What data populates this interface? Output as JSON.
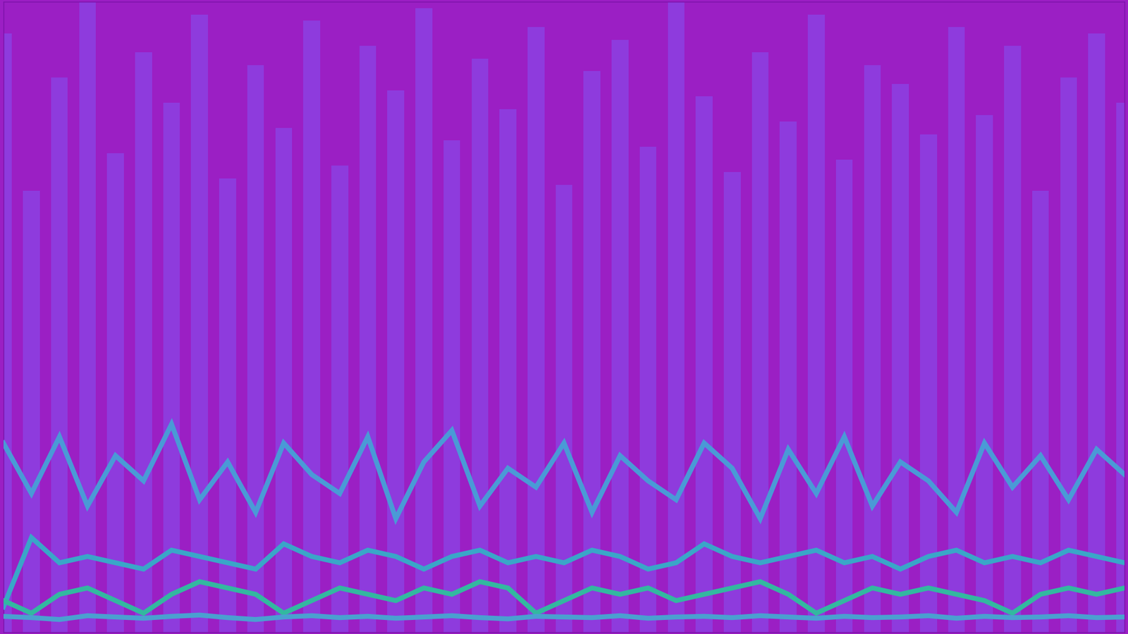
{
  "chart_data": {
    "type": "line",
    "xlim": [
      0,
      100
    ],
    "ylim": [
      0,
      100
    ],
    "tick_labels": false,
    "grid": false,
    "x": [
      0,
      2.5,
      5,
      7.5,
      10,
      12.5,
      15,
      17.5,
      20,
      22.5,
      25,
      27.5,
      30,
      32.5,
      35,
      37.5,
      40,
      42.5,
      45,
      47.5,
      50,
      52.5,
      55,
      57.5,
      60,
      62.5,
      65,
      67.5,
      70,
      72.5,
      75,
      77.5,
      80,
      82.5,
      85,
      87.5,
      90,
      92.5,
      95,
      97.5,
      100
    ],
    "series": [
      {
        "type": "bar",
        "color": "#8a45e6",
        "values": [
          95,
          70,
          88,
          100,
          76,
          92,
          84,
          98,
          72,
          90,
          80,
          97,
          74,
          93,
          86,
          99,
          78,
          91,
          83,
          96,
          71,
          89,
          94,
          77,
          100,
          85,
          73,
          92,
          81,
          98,
          75,
          90,
          87,
          79,
          96,
          82,
          93,
          70,
          88,
          95,
          84
        ]
      },
      {
        "type": "line",
        "color": "#4a9ad6",
        "line_style": "solid",
        "values": [
          30,
          22,
          31,
          20,
          28,
          24,
          33,
          21,
          27,
          19,
          30,
          25,
          22,
          31,
          18,
          27,
          32,
          20,
          26,
          23,
          30,
          19,
          28,
          24,
          21,
          30,
          26,
          18,
          29,
          22,
          31,
          20,
          27,
          24,
          19,
          30,
          23,
          28,
          21,
          29,
          25
        ]
      },
      {
        "type": "line",
        "color": "#3aa6c8",
        "line_style": "solid",
        "values": [
          4,
          15,
          11,
          12,
          11,
          10,
          13,
          12,
          11,
          10,
          14,
          12,
          11,
          13,
          12,
          10,
          12,
          13,
          11,
          12,
          11,
          13,
          12,
          10,
          11,
          14,
          12,
          11,
          12,
          13,
          11,
          12,
          10,
          12,
          13,
          11,
          12,
          11,
          13,
          12,
          11
        ]
      },
      {
        "type": "line",
        "color": "#33b8a0",
        "line_style": "solid",
        "values": [
          5,
          3,
          6,
          7,
          5,
          3,
          6,
          8,
          7,
          6,
          3,
          5,
          7,
          6,
          5,
          7,
          6,
          8,
          7,
          3,
          5,
          7,
          6,
          7,
          5,
          6,
          7,
          8,
          6,
          3,
          5,
          7,
          6,
          7,
          6,
          5,
          3,
          6,
          7,
          6,
          7
        ]
      },
      {
        "type": "line",
        "color": "#4aa0d0",
        "line_style": "solid",
        "values": [
          2.5,
          2.3,
          2.0,
          2.6,
          2.4,
          2.2,
          2.5,
          2.7,
          2.3,
          2.0,
          2.4,
          2.6,
          2.3,
          2.5,
          2.2,
          2.4,
          2.6,
          2.3,
          2.1,
          2.5,
          2.4,
          2.3,
          2.6,
          2.2,
          2.4,
          2.5,
          2.3,
          2.6,
          2.4,
          2.2,
          2.5,
          2.3,
          2.4,
          2.6,
          2.2,
          2.5,
          2.3,
          2.4,
          2.6,
          2.3,
          2.4
        ]
      }
    ]
  }
}
